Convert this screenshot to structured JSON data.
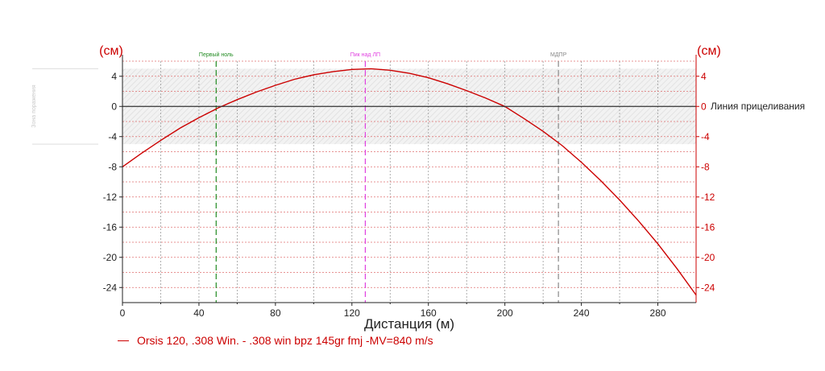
{
  "chart_data": {
    "type": "line",
    "title": "",
    "xlabel": "Дистанция (м)",
    "ylabel_left": "(см)",
    "ylabel_right": "(см)",
    "xlim": [
      0,
      300
    ],
    "ylim": [
      -26,
      6
    ],
    "x_ticks": [
      0,
      40,
      80,
      120,
      160,
      200,
      240,
      280
    ],
    "y_ticks": [
      4,
      0,
      -4,
      -8,
      -12,
      -16,
      -20,
      -24
    ],
    "kill_zone": [
      -5,
      5
    ],
    "kill_zone_label": "Зона поражения",
    "line_of_sight_label": "Линия прицеливания",
    "grid": true,
    "legend_position": "bottom-left",
    "markers": [
      {
        "label": "Первый ноль",
        "x": 49,
        "color": "#228b22"
      },
      {
        "label": "Пик над ЛП",
        "x": 127,
        "color": "#e040e0"
      },
      {
        "label": "МДПР",
        "x": 228,
        "color": "#888888"
      }
    ],
    "series": [
      {
        "name": "Orsis 120, .308 Win. - .308 win bpz 145gr fmj -MV=840 m/s",
        "color": "#cc0000",
        "x": [
          0,
          10,
          20,
          30,
          40,
          50,
          60,
          70,
          80,
          90,
          100,
          110,
          120,
          130,
          140,
          150,
          160,
          170,
          180,
          190,
          200,
          210,
          220,
          230,
          240,
          250,
          260,
          270,
          280,
          290,
          300
        ],
        "y": [
          -8.0,
          -6.2,
          -4.5,
          -2.9,
          -1.5,
          -0.2,
          0.9,
          1.9,
          2.8,
          3.6,
          4.2,
          4.6,
          4.9,
          5.0,
          4.8,
          4.4,
          3.8,
          3.0,
          2.1,
          1.1,
          0.0,
          -1.6,
          -3.3,
          -5.2,
          -7.4,
          -9.8,
          -12.4,
          -15.2,
          -18.2,
          -21.5,
          -25.0
        ]
      }
    ]
  }
}
